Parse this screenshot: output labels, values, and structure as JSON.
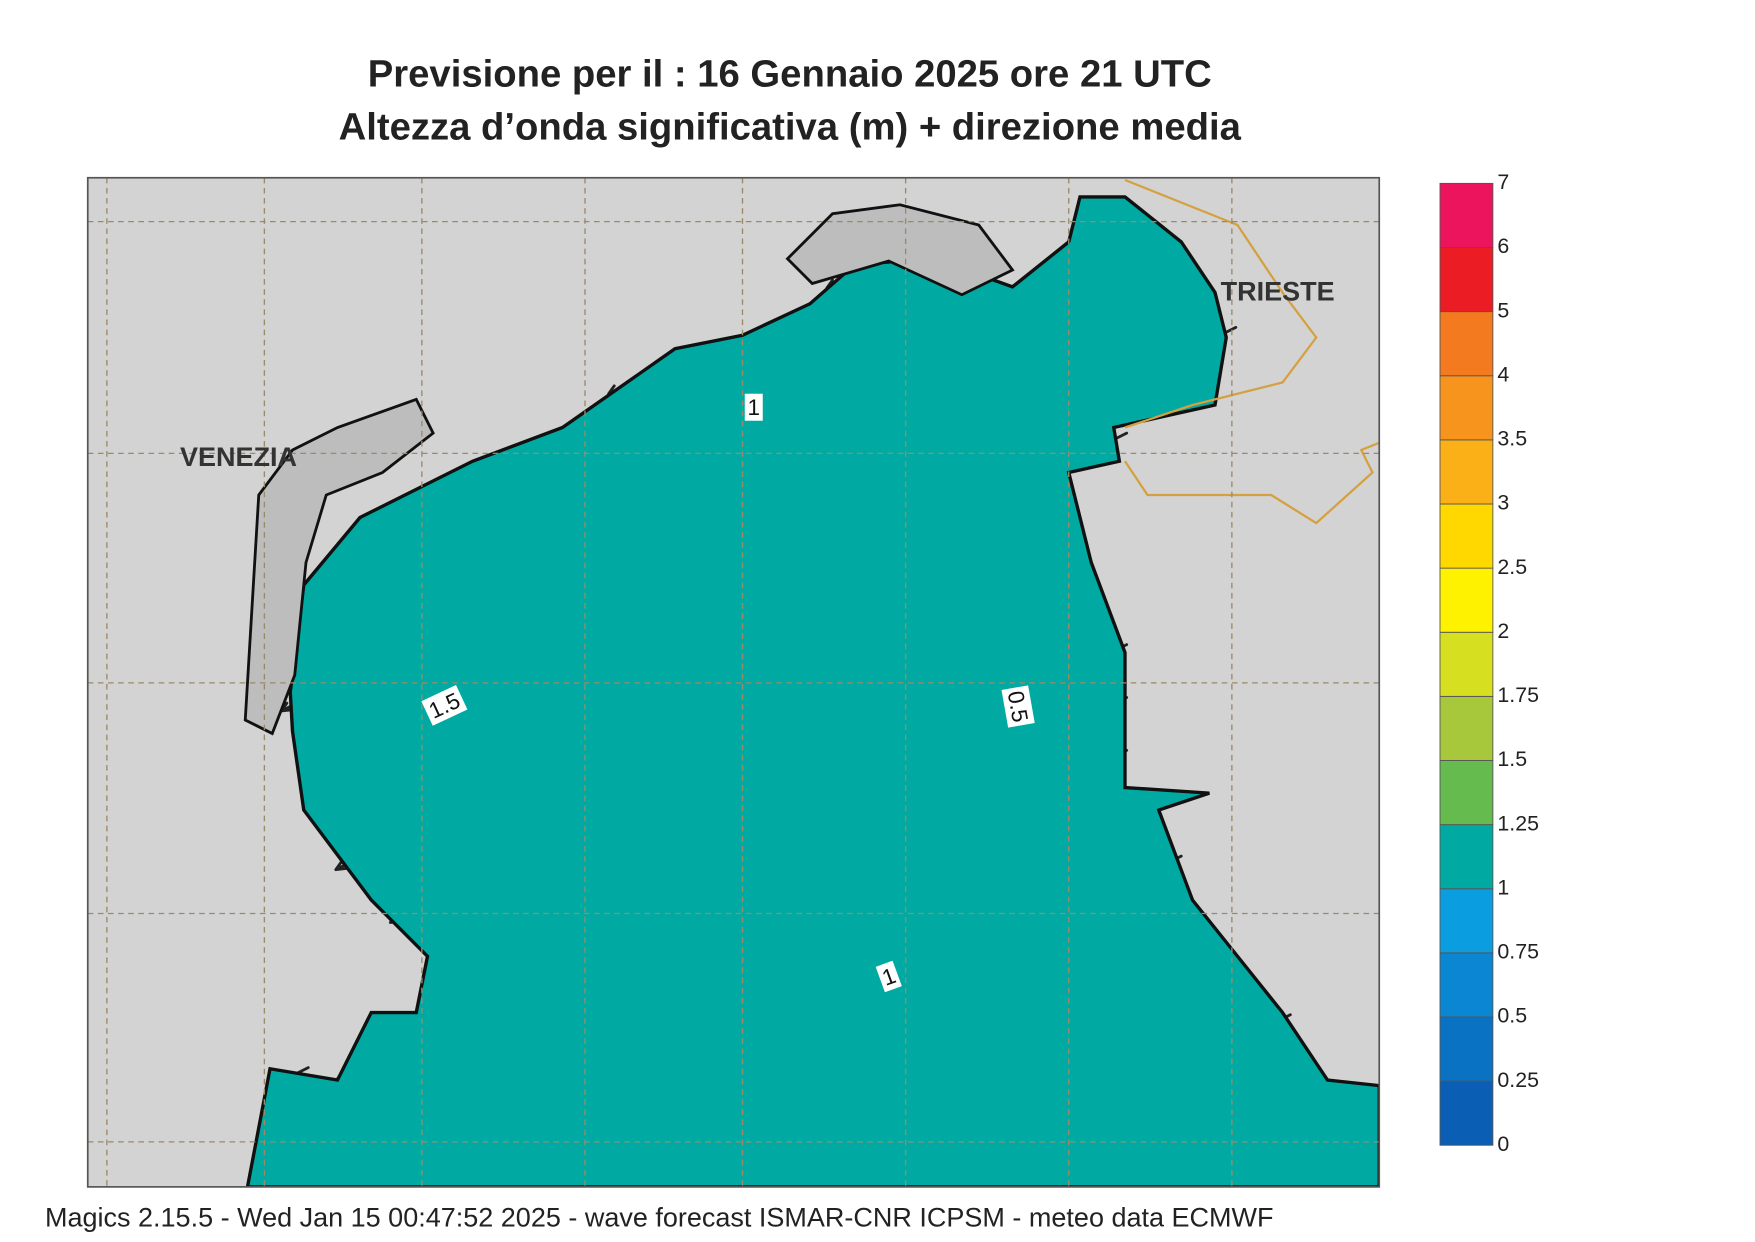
{
  "header": {
    "title": "Previsione per il  :  16  Gennaio  2025   ore 21 UTC",
    "subtitle": "Altezza d’onda significativa (m) + direzione media"
  },
  "places": [
    "VENEZIA",
    "TRIESTE"
  ],
  "contour_labels": [
    "1",
    "1.5",
    "0.5",
    "1"
  ],
  "colorbar": {
    "ticks": [
      "0",
      "0.25",
      "0.5",
      "0.75",
      "1",
      "1.25",
      "1.5",
      "1.75",
      "2",
      "2.5",
      "3",
      "3.5",
      "4",
      "5",
      "6",
      "7"
    ],
    "colors": [
      "#0a5fb4",
      "#0a72c2",
      "#0a86d2",
      "#0a9ee0",
      "#00aaa2",
      "#66bb4e",
      "#a8c83c",
      "#d6e020",
      "#fff200",
      "#ffd800",
      "#fbb018",
      "#f7941e",
      "#f47a20",
      "#ec1c24",
      "#ec145c"
    ]
  },
  "footer": "Magics 2.15.5 - Wed Jan 15 00:47:52 2025 - wave forecast  ISMAR-CNR  ICPSM - meteo data   ECMWF"
}
